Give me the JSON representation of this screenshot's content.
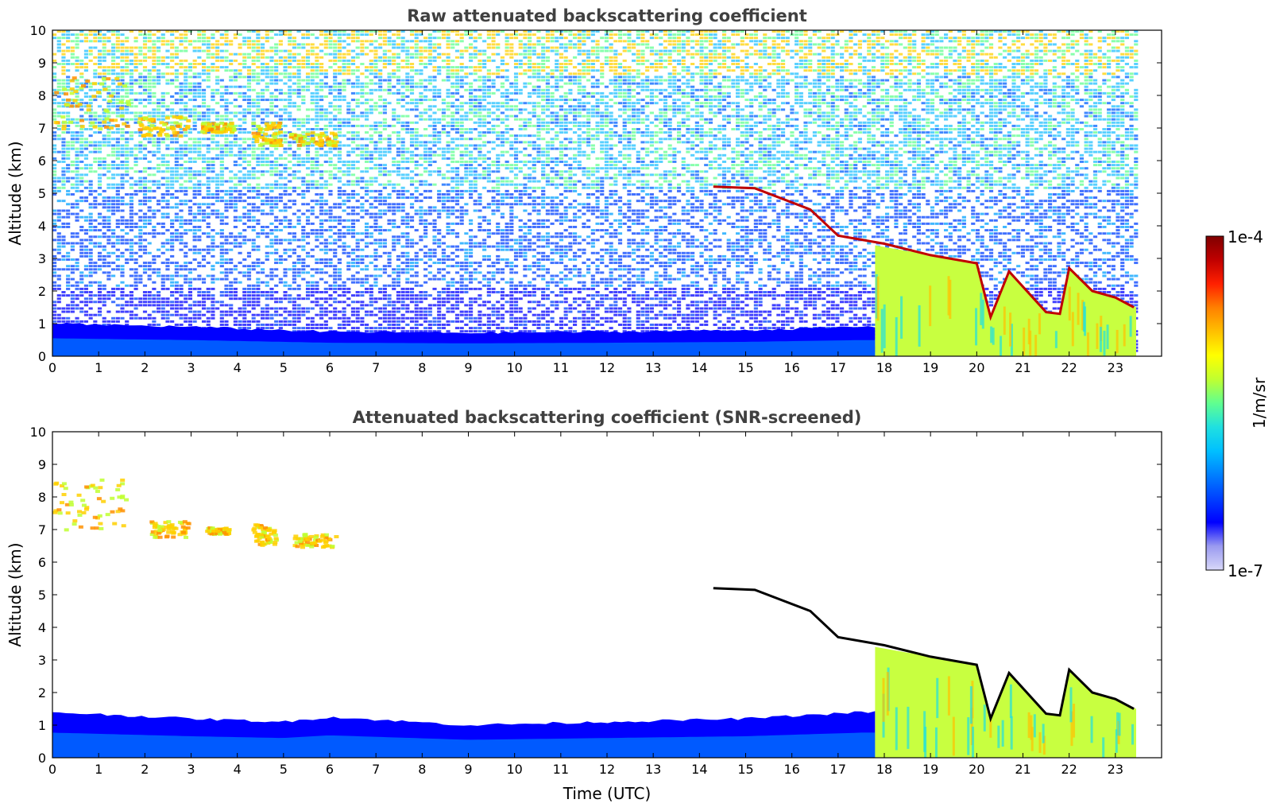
{
  "colorbar": {
    "label": "1/m/sr",
    "max_label": "1e-4",
    "min_label": "1e-7",
    "scale": "log",
    "range": [
      1e-07,
      0.0001
    ],
    "colormap": [
      "#d8d8f8",
      "#9a9af0",
      "#0000ff",
      "#0040ff",
      "#0080ff",
      "#00c0ff",
      "#20e0e0",
      "#60ff90",
      "#c0ff30",
      "#ffff00",
      "#ffc000",
      "#ff8000",
      "#ff2000",
      "#c00000",
      "#800000"
    ]
  },
  "xlabel": "Time (UTC)",
  "chart_data": [
    {
      "type": "heatmap",
      "title": "Raw attenuated backscattering coefficient",
      "xlabel": "",
      "ylabel": "Altitude (km)",
      "xlim": [
        0,
        24
      ],
      "ylim": [
        0,
        10
      ],
      "xticks": [
        0,
        1,
        2,
        3,
        4,
        5,
        6,
        7,
        8,
        9,
        10,
        11,
        12,
        13,
        14,
        15,
        16,
        17,
        18,
        19,
        20,
        21,
        22,
        23
      ],
      "yticks": [
        0,
        1,
        2,
        3,
        4,
        5,
        6,
        7,
        8,
        9,
        10
      ],
      "data_end_hour": 23.5,
      "boundary_layer": [
        [
          0,
          1.0
        ],
        [
          3,
          0.9
        ],
        [
          6,
          0.75
        ],
        [
          9,
          0.72
        ],
        [
          12,
          0.75
        ],
        [
          15,
          0.8
        ],
        [
          17.5,
          0.9
        ]
      ],
      "cirrus_patches": [
        {
          "t0": 0.0,
          "t1": 1.6,
          "z0": 7.0,
          "z1": 8.6,
          "level": "high"
        },
        {
          "t0": 1.8,
          "t1": 2.9,
          "z0": 6.8,
          "z1": 7.4,
          "level": "high"
        },
        {
          "t0": 3.2,
          "t1": 3.9,
          "z0": 6.9,
          "z1": 7.2,
          "level": "mid"
        },
        {
          "t0": 4.3,
          "t1": 4.9,
          "z0": 6.5,
          "z1": 7.2,
          "level": "high"
        },
        {
          "t0": 5.1,
          "t1": 6.1,
          "z0": 6.5,
          "z1": 6.9,
          "level": "high"
        }
      ],
      "cloud_top_line": [
        [
          14.3,
          5.2
        ],
        [
          15.2,
          5.15
        ],
        [
          16.4,
          4.5
        ],
        [
          17.0,
          3.7
        ],
        [
          18.0,
          3.45
        ],
        [
          19.0,
          3.1
        ],
        [
          20.0,
          2.85
        ],
        [
          20.3,
          1.2
        ],
        [
          20.7,
          2.6
        ],
        [
          21.5,
          1.35
        ],
        [
          21.8,
          1.3
        ],
        [
          22.0,
          2.7
        ],
        [
          22.5,
          2.0
        ],
        [
          23.0,
          1.8
        ],
        [
          23.4,
          1.5
        ]
      ],
      "cloud_region": [
        [
          17.8,
          3.4
        ],
        [
          19.0,
          3.1
        ],
        [
          20.0,
          2.85
        ],
        [
          20.3,
          1.2
        ],
        [
          20.7,
          2.6
        ],
        [
          21.5,
          1.35
        ],
        [
          21.8,
          1.3
        ],
        [
          22.0,
          2.7
        ],
        [
          22.5,
          2.0
        ],
        [
          23.0,
          1.8
        ],
        [
          23.45,
          1.5
        ]
      ]
    },
    {
      "type": "heatmap",
      "title": "Attenuated backscattering coefficient (SNR-screened)",
      "xlabel": "Time (UTC)",
      "ylabel": "Altitude (km)",
      "xlim": [
        0,
        24
      ],
      "ylim": [
        0,
        10
      ],
      "xticks": [
        0,
        1,
        2,
        3,
        4,
        5,
        6,
        7,
        8,
        9,
        10,
        11,
        12,
        13,
        14,
        15,
        16,
        17,
        18,
        19,
        20,
        21,
        22,
        23
      ],
      "yticks": [
        0,
        1,
        2,
        3,
        4,
        5,
        6,
        7,
        8,
        9,
        10
      ],
      "data_end_hour": 23.5,
      "boundary_layer": [
        [
          0,
          1.4
        ],
        [
          3,
          1.2
        ],
        [
          5,
          1.1
        ],
        [
          6,
          1.25
        ],
        [
          9,
          1.0
        ],
        [
          12,
          1.1
        ],
        [
          15,
          1.2
        ],
        [
          17.5,
          1.4
        ]
      ],
      "cirrus_patches": [
        {
          "t0": 0.0,
          "t1": 1.6,
          "z0": 7.0,
          "z1": 8.6,
          "level": "high"
        },
        {
          "t0": 2.1,
          "t1": 2.9,
          "z0": 6.8,
          "z1": 7.3,
          "level": "high"
        },
        {
          "t0": 3.3,
          "t1": 3.8,
          "z0": 6.9,
          "z1": 7.1,
          "level": "high"
        },
        {
          "t0": 4.3,
          "t1": 4.8,
          "z0": 6.5,
          "z1": 7.2,
          "level": "high"
        },
        {
          "t0": 5.2,
          "t1": 6.1,
          "z0": 6.5,
          "z1": 6.9,
          "level": "high"
        }
      ],
      "cloud_top_line": [
        [
          14.3,
          5.2
        ],
        [
          15.2,
          5.15
        ],
        [
          16.4,
          4.5
        ],
        [
          17.0,
          3.7
        ],
        [
          18.0,
          3.45
        ],
        [
          19.0,
          3.1
        ],
        [
          20.0,
          2.85
        ],
        [
          20.3,
          1.2
        ],
        [
          20.7,
          2.6
        ],
        [
          21.5,
          1.35
        ],
        [
          21.8,
          1.3
        ],
        [
          22.0,
          2.7
        ],
        [
          22.5,
          2.0
        ],
        [
          23.0,
          1.8
        ],
        [
          23.4,
          1.5
        ]
      ],
      "cloud_region": [
        [
          17.8,
          3.4
        ],
        [
          19.0,
          3.1
        ],
        [
          20.0,
          2.85
        ],
        [
          20.3,
          1.2
        ],
        [
          20.7,
          2.6
        ],
        [
          21.5,
          1.35
        ],
        [
          21.8,
          1.3
        ],
        [
          22.0,
          2.7
        ],
        [
          22.5,
          2.0
        ],
        [
          23.0,
          1.8
        ],
        [
          23.45,
          1.5
        ]
      ],
      "saturated_color": "#000000"
    }
  ]
}
